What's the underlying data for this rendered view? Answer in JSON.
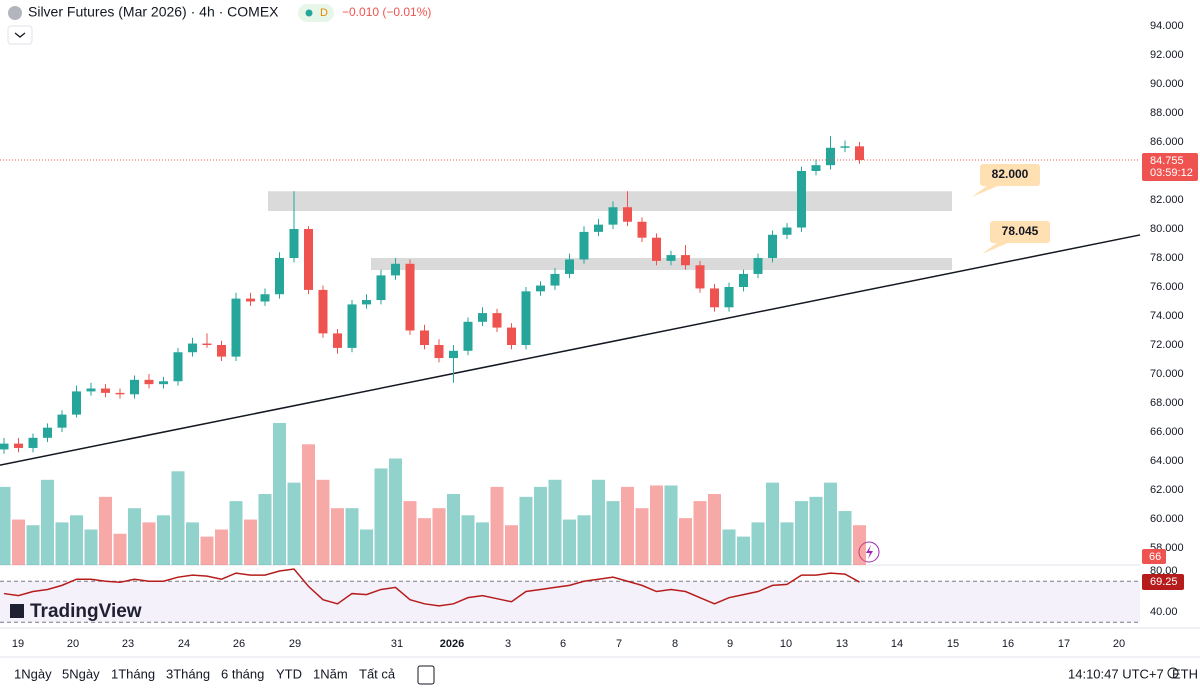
{
  "header": {
    "title": "Silver Futures (Mar 2026) · 4h · COMEX",
    "badge": "D",
    "change": "−0.010 (−0.01%)"
  },
  "logo": "TradingView",
  "toolbar": {
    "ranges": [
      "1Ngày",
      "5Ngày",
      "1Tháng",
      "3Tháng",
      "6 tháng",
      "YTD",
      "1Năm",
      "Tất cả"
    ],
    "clock": "14:10:47 UTC+7",
    "session": "ETH"
  },
  "chart_data": {
    "type": "candlestick",
    "ylim": [
      56.83,
      95.79
    ],
    "yticks": [
      {
        "value": 58,
        "label": "58.000"
      },
      {
        "value": 60,
        "label": "60.000"
      },
      {
        "value": 62,
        "label": "62.000"
      },
      {
        "value": 64,
        "label": "64.000"
      },
      {
        "value": 66,
        "label": "66.000"
      },
      {
        "value": 68,
        "label": "68.000"
      },
      {
        "value": 70,
        "label": "70.000"
      },
      {
        "value": 72,
        "label": "72.000"
      },
      {
        "value": 74,
        "label": "74.000"
      },
      {
        "value": 76,
        "label": "76.000"
      },
      {
        "value": 78,
        "label": "78.000"
      },
      {
        "value": 80,
        "label": "80.000"
      },
      {
        "value": 82,
        "label": "82.000"
      },
      {
        "value": 84,
        "label": "84.000"
      },
      {
        "value": 86,
        "label": "86.000"
      },
      {
        "value": 88,
        "label": "88.000"
      },
      {
        "value": 90,
        "label": "90.000"
      },
      {
        "value": 92,
        "label": "92.000"
      },
      {
        "value": 94,
        "label": "94.000"
      }
    ],
    "x_labels": [
      "19",
      "20",
      "23",
      "24",
      "26",
      "29",
      "31",
      "2026",
      "3",
      "6",
      "7",
      "8",
      "9",
      "10",
      "13",
      "14",
      "15",
      "16",
      "17",
      "20"
    ],
    "open": [
      64.8,
      65.2,
      64.9,
      65.6,
      66.3,
      67.2,
      68.8,
      69.0,
      68.7,
      68.6,
      69.6,
      69.3,
      69.5,
      71.5,
      72.1,
      72.0,
      71.2,
      75.2,
      75.0,
      75.5,
      78.0,
      80.0,
      75.8,
      72.8,
      71.8,
      74.8,
      75.1,
      76.8,
      77.6,
      73.0,
      72.0,
      71.1,
      71.6,
      73.6,
      74.2,
      73.2,
      72.0,
      75.7,
      76.1,
      76.9,
      77.9,
      79.8,
      80.3,
      81.5,
      80.5,
      79.4,
      77.8,
      78.2,
      77.5,
      75.9,
      74.6,
      76.0,
      76.9,
      78.0,
      79.6,
      80.1,
      84.0,
      84.4,
      85.6,
      85.7
    ],
    "high": [
      65.6,
      65.6,
      65.9,
      66.6,
      67.5,
      69.2,
      69.4,
      69.3,
      69.0,
      69.9,
      70.0,
      69.8,
      71.8,
      72.5,
      72.8,
      72.3,
      75.6,
      75.6,
      75.9,
      78.4,
      82.6,
      80.2,
      76.1,
      73.1,
      75.1,
      75.5,
      77.2,
      78.0,
      77.9,
      73.4,
      72.4,
      72.0,
      73.9,
      74.6,
      74.5,
      73.5,
      76.0,
      76.4,
      77.3,
      78.3,
      80.2,
      80.7,
      81.9,
      82.6,
      80.8,
      79.7,
      78.5,
      78.9,
      77.8,
      76.2,
      76.3,
      77.2,
      78.3,
      79.9,
      80.4,
      84.3,
      84.8,
      86.4,
      86.1,
      86.0
    ],
    "low": [
      64.5,
      64.6,
      64.6,
      65.3,
      66.0,
      67.0,
      68.5,
      68.4,
      68.3,
      68.3,
      69.0,
      69.0,
      69.2,
      71.2,
      71.8,
      70.9,
      70.9,
      74.7,
      74.7,
      75.2,
      77.7,
      75.5,
      72.5,
      71.4,
      71.5,
      74.5,
      74.8,
      76.5,
      72.7,
      71.7,
      70.8,
      69.4,
      71.3,
      73.3,
      72.9,
      71.7,
      71.7,
      75.4,
      75.8,
      76.6,
      77.6,
      79.5,
      80.0,
      80.2,
      79.1,
      77.5,
      77.5,
      77.2,
      75.6,
      74.3,
      74.3,
      75.7,
      76.6,
      77.7,
      79.3,
      79.8,
      83.7,
      84.1,
      85.3,
      84.5
    ],
    "close": [
      65.2,
      64.9,
      65.6,
      66.3,
      67.2,
      68.8,
      69.0,
      68.7,
      68.6,
      69.6,
      69.3,
      69.5,
      71.5,
      72.1,
      72.0,
      71.2,
      75.2,
      75.0,
      75.5,
      78.0,
      80.0,
      75.8,
      72.8,
      71.8,
      74.8,
      75.1,
      76.8,
      77.6,
      73.0,
      72.0,
      71.1,
      71.6,
      73.6,
      74.2,
      73.2,
      72.0,
      75.7,
      76.1,
      76.9,
      77.9,
      79.8,
      80.3,
      81.5,
      80.5,
      79.4,
      77.8,
      78.2,
      77.5,
      75.9,
      74.6,
      76.0,
      76.9,
      78.0,
      79.6,
      80.1,
      84.0,
      84.4,
      85.6,
      85.7,
      84.755
    ],
    "last_price_label": "84.755",
    "countdown": "03:59:12",
    "up_color": "#26a69a",
    "down_color": "#ef5350",
    "volume": [
      55,
      32,
      28,
      60,
      30,
      35,
      25,
      48,
      22,
      40,
      30,
      35,
      66,
      30,
      20,
      25,
      45,
      32,
      50,
      100,
      58,
      85,
      60,
      40,
      40,
      25,
      68,
      75,
      45,
      33,
      40,
      50,
      35,
      30,
      55,
      28,
      48,
      55,
      60,
      32,
      35,
      60,
      45,
      55,
      40,
      56,
      56,
      33,
      45,
      50,
      25,
      20,
      30,
      58,
      30,
      45,
      48,
      58,
      38,
      28
    ],
    "volume_label": "66",
    "rsi": {
      "values": [
        58,
        56,
        60,
        62,
        66,
        72,
        72,
        70,
        69,
        72,
        70,
        70,
        74,
        76,
        75,
        72,
        78,
        76,
        76,
        80,
        82,
        65,
        52,
        48,
        58,
        57,
        62,
        64,
        52,
        48,
        46,
        48,
        54,
        56,
        53,
        50,
        60,
        62,
        64,
        66,
        70,
        72,
        74,
        70,
        66,
        60,
        62,
        60,
        54,
        48,
        54,
        57,
        60,
        66,
        67,
        76,
        76,
        78,
        77,
        69.25
      ],
      "ylim": [
        27.3,
        85.9
      ],
      "levels": [
        70,
        30
      ],
      "yticks": [
        {
          "value": 40,
          "label": "40.00"
        },
        {
          "value": 80,
          "label": "80.00"
        }
      ],
      "last_label": "69.25",
      "color": "#b71c1c"
    },
    "zones": [
      {
        "top": 82.6,
        "bottom": 81.24,
        "label": "82.000"
      },
      {
        "top": 78.0,
        "bottom": 77.17,
        "label": "78.045"
      }
    ],
    "trendline": {
      "from": 63.72,
      "to": 79.59
    }
  }
}
